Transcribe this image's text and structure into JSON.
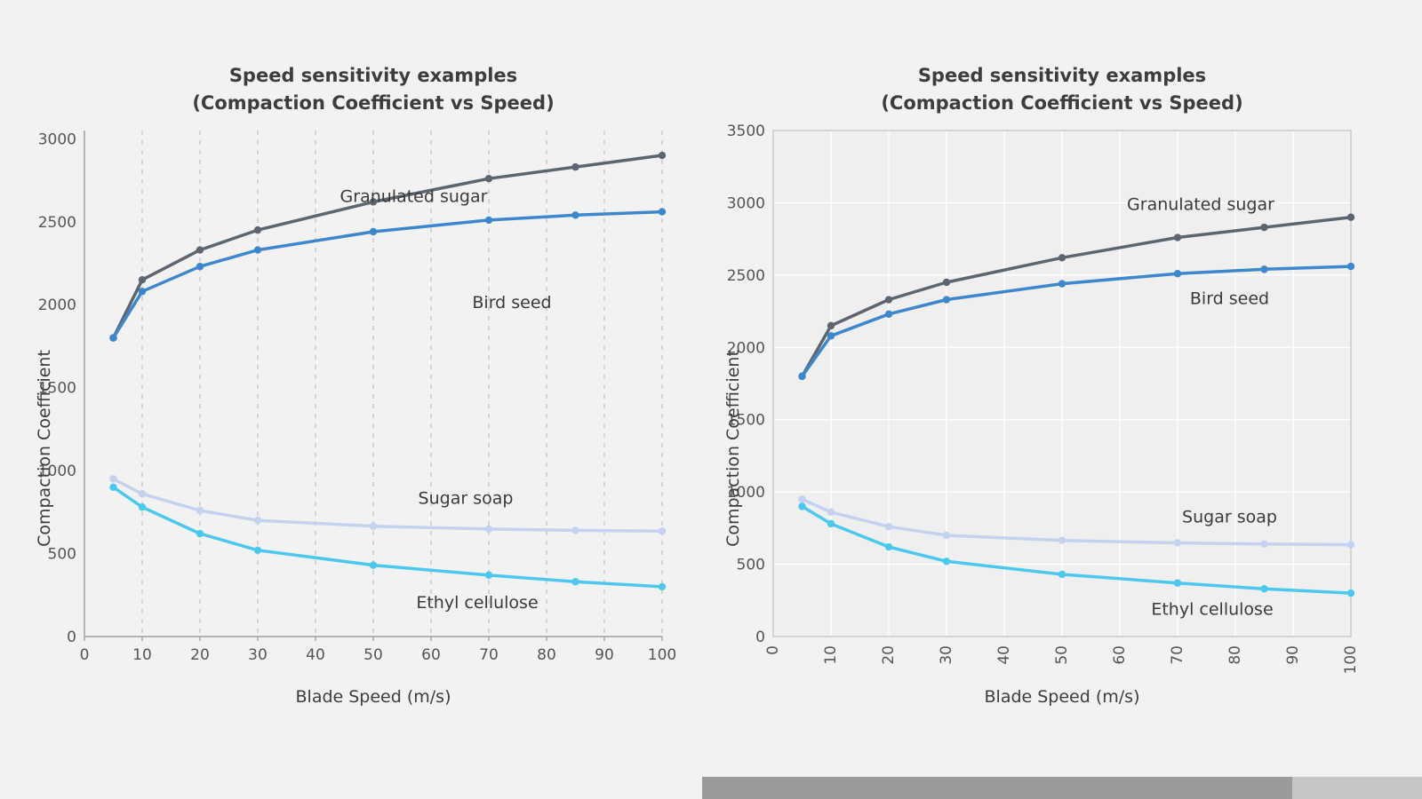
{
  "page": {
    "background": "#f2f2f2"
  },
  "scrollbar": {
    "track_color": "#c6c6c6",
    "handle_color": "#9a9a9a",
    "handle_fraction": "82%"
  },
  "chart_data": [
    {
      "type": "line",
      "title": "Speed sensitivity examples",
      "subtitle": "(Compaction Coefficient vs Speed)",
      "xlabel": "Blade Speed (m/s)",
      "ylabel": "Compaction Coefficient",
      "xlim": [
        0,
        100
      ],
      "ylim": [
        0,
        3050
      ],
      "xticks": [
        0,
        10,
        20,
        30,
        40,
        50,
        60,
        70,
        80,
        90,
        100
      ],
      "yticks": [
        0,
        500,
        1000,
        1500,
        2000,
        2500,
        3000
      ],
      "xtick_rotation": 0,
      "grid": {
        "vertical": true,
        "horizontal": false,
        "style": "dashed",
        "color": "#c8c8c8"
      },
      "frame": false,
      "plot_bg": "",
      "x": [
        5,
        10,
        20,
        30,
        50,
        70,
        85,
        100
      ],
      "series": [
        {
          "name": "Granulated sugar",
          "color": "#5d6670",
          "values": [
            1800,
            2150,
            2330,
            2450,
            2620,
            2760,
            2830,
            2900
          ],
          "label_pos": [
            57,
            2620
          ]
        },
        {
          "name": "Bird seed",
          "color": "#3f87cc",
          "values": [
            1800,
            2080,
            2230,
            2330,
            2440,
            2510,
            2540,
            2560
          ],
          "label_pos": [
            74,
            1980
          ]
        },
        {
          "name": "Sugar soap",
          "color": "#c3d2ee",
          "values": [
            950,
            860,
            760,
            700,
            665,
            648,
            640,
            635
          ],
          "label_pos": [
            66,
            800
          ]
        },
        {
          "name": "Ethyl cellulose",
          "color": "#4cc8ef",
          "values": [
            900,
            780,
            620,
            520,
            430,
            370,
            330,
            300
          ],
          "label_pos": [
            68,
            170
          ]
        }
      ]
    },
    {
      "type": "line",
      "title": "Speed sensitivity examples",
      "subtitle": "(Compaction Coefficient vs Speed)",
      "xlabel": "Blade Speed (m/s)",
      "ylabel": "Compaction Coefficient",
      "xlim": [
        0,
        100
      ],
      "ylim": [
        0,
        3500
      ],
      "xticks": [
        0,
        10,
        20,
        30,
        40,
        50,
        60,
        70,
        80,
        90,
        100
      ],
      "yticks": [
        0,
        500,
        1000,
        1500,
        2000,
        2500,
        3000,
        3500
      ],
      "xtick_rotation": 90,
      "grid": {
        "vertical": true,
        "horizontal": true,
        "style": "solid",
        "color": "#ffffff"
      },
      "frame": true,
      "plot_bg": "#efefef",
      "x": [
        5,
        10,
        20,
        30,
        50,
        70,
        85,
        100
      ],
      "series": [
        {
          "name": "Granulated sugar",
          "color": "#5d6670",
          "values": [
            1800,
            2150,
            2330,
            2450,
            2620,
            2760,
            2830,
            2900
          ],
          "label_pos": [
            74,
            2950
          ]
        },
        {
          "name": "Bird seed",
          "color": "#3f87cc",
          "values": [
            1800,
            2080,
            2230,
            2330,
            2440,
            2510,
            2540,
            2560
          ],
          "label_pos": [
            79,
            2300
          ]
        },
        {
          "name": "Sugar soap",
          "color": "#c3d2ee",
          "values": [
            950,
            860,
            760,
            700,
            665,
            648,
            640,
            635
          ],
          "label_pos": [
            79,
            790
          ]
        },
        {
          "name": "Ethyl cellulose",
          "color": "#4cc8ef",
          "values": [
            900,
            780,
            620,
            520,
            430,
            370,
            330,
            300
          ],
          "label_pos": [
            76,
            150
          ]
        }
      ]
    }
  ]
}
